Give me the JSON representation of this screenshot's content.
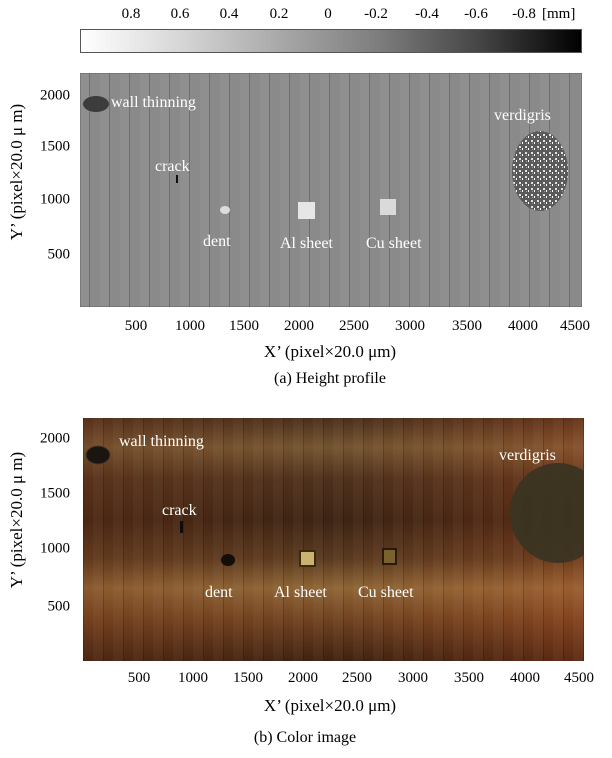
{
  "colorbar": {
    "ticks": [
      "0.8",
      "0.6",
      "0.4",
      "0.2",
      "0",
      "-0.2",
      "-0.4",
      "-0.6",
      "-0.8"
    ],
    "unit": "[mm]"
  },
  "panel_a": {
    "y_axis_label": "Y’ (pixel×20.0 μ m)",
    "x_axis_label": "X’ (pixel×20.0 μm)",
    "caption": "(a) Height profile",
    "y_ticks": [
      "2000",
      "1500",
      "1000",
      "500"
    ],
    "x_ticks": [
      "500",
      "1000",
      "1500",
      "2000",
      "2500",
      "3000",
      "3500",
      "4000",
      "4500"
    ],
    "annotations": {
      "wall_thinning": "wall thinning",
      "crack": "crack",
      "dent": "dent",
      "al_sheet": "Al sheet",
      "cu_sheet": "Cu sheet",
      "verdigris": "verdigris"
    }
  },
  "panel_b": {
    "y_axis_label": "Y’ (pixel×20.0 μ m)",
    "x_axis_label": "X’ (pixel×20.0 μm)",
    "caption": "(b) Color image",
    "y_ticks": [
      "2000",
      "1500",
      "1000",
      "500"
    ],
    "x_ticks": [
      "500",
      "1000",
      "1500",
      "2000",
      "2500",
      "3000",
      "3500",
      "4000",
      "4500"
    ],
    "annotations": {
      "wall_thinning": "wall thinning",
      "crack": "crack",
      "dent": "dent",
      "al_sheet": "Al sheet",
      "cu_sheet": "Cu sheet",
      "verdigris": "verdigris"
    }
  }
}
